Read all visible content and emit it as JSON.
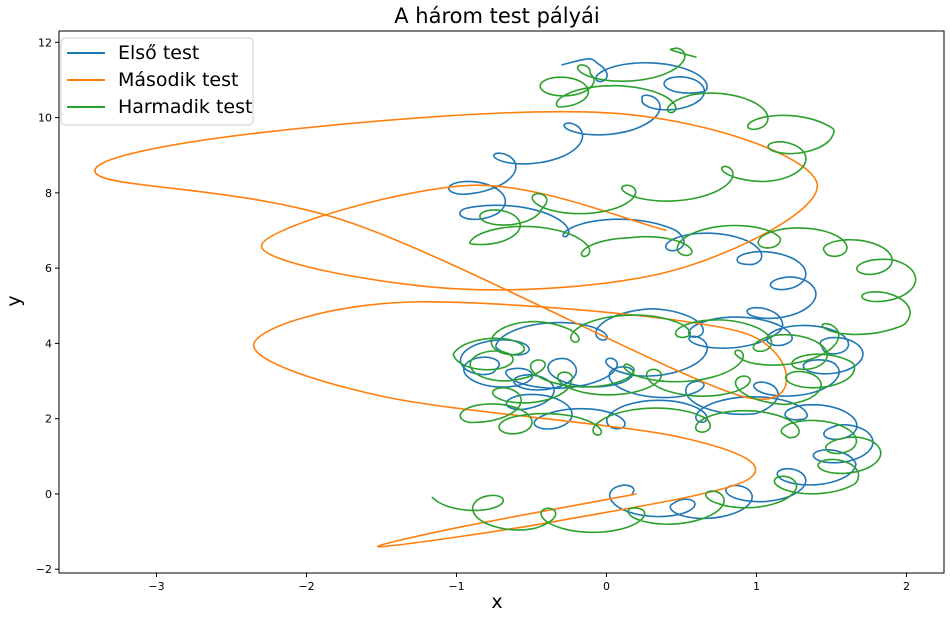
{
  "chart_data": {
    "type": "line",
    "title": "A három test pályái",
    "xlabel": "x",
    "ylabel": "y",
    "xlim": [
      -3.65,
      2.25
    ],
    "ylim": [
      -2.1,
      12.3
    ],
    "xticks": [
      -3,
      -2,
      -1,
      0,
      1,
      2
    ],
    "xtick_labels": [
      "−3",
      "−2",
      "−1",
      "0",
      "1",
      "2"
    ],
    "yticks": [
      -2,
      0,
      2,
      4,
      6,
      8,
      10,
      12
    ],
    "ytick_labels": [
      "−2",
      "0",
      "2",
      "4",
      "6",
      "8",
      "10",
      "12"
    ],
    "grid": false,
    "legend_position": "top-left",
    "series": [
      {
        "name": "Első test",
        "color": "#1f77b4",
        "style": "looping spiral; center drifts from (0,0) out to x≈1.6 and up to y≈12",
        "x": [
          0.0,
          0.55,
          1.05,
          1.5,
          1.65,
          1.3,
          0.4,
          -0.3,
          -0.55,
          -0.35,
          0.2,
          0.9,
          1.45,
          1.6,
          1.1,
          0.3,
          -0.6,
          -0.9,
          -0.6,
          0.3,
          1.0,
          1.3,
          1.0,
          0.3,
          -0.8,
          -0.9,
          -0.3,
          0.4,
          0.6,
          -0.3
        ],
        "y": [
          0.0,
          -0.5,
          0.1,
          0.7,
          1.6,
          2.3,
          2.2,
          1.9,
          2.6,
          3.3,
          3.0,
          2.4,
          3.2,
          4.0,
          4.3,
          4.6,
          4.1,
          3.4,
          3.0,
          3.4,
          4.4,
          5.5,
          6.4,
          6.9,
          7.4,
          8.3,
          9.4,
          10.4,
          11.0,
          11.4
        ]
      },
      {
        "name": "Második test",
        "color": "#ff7f0e",
        "style": "large elongated loops",
        "x": [
          0.4,
          -0.9,
          -2.3,
          -1.0,
          0.5,
          1.4,
          0.1,
          -2.3,
          -3.4,
          -1.7,
          0.9,
          0.9,
          -1.3,
          -2.35,
          -1.5,
          0.5,
          0.95,
          -0.3,
          -1.5,
          -1.0,
          0.2
        ],
        "y": [
          7.0,
          8.2,
          6.6,
          5.45,
          6.0,
          8.3,
          10.1,
          9.6,
          8.5,
          7.2,
          2.6,
          4.3,
          5.1,
          4.0,
          2.6,
          1.5,
          0.4,
          -0.7,
          -1.4,
          -0.9,
          0.0
        ]
      },
      {
        "name": "Harmadik test",
        "color": "#2ca02c",
        "style": "looping spiral; center drifts from (-1,0) out to x≈1.9 and up to y≈11.6",
        "x": [
          -1.0,
          -0.6,
          0.2,
          0.9,
          1.5,
          1.7,
          1.3,
          0.5,
          -0.5,
          -0.85,
          -0.4,
          0.4,
          1.2,
          1.5,
          1.2,
          0.5,
          -0.5,
          -0.85,
          -0.7,
          0.1,
          1.1,
          1.85,
          1.9,
          1.6,
          1.0,
          0.2,
          -0.8,
          -0.6,
          0.2,
          1.1,
          1.35,
          0.7,
          -0.3,
          -0.25,
          0.6
        ],
        "y": [
          0.0,
          -0.7,
          -0.7,
          -0.1,
          0.4,
          1.2,
          1.8,
          2.0,
          1.8,
          2.2,
          2.9,
          3.0,
          2.7,
          3.3,
          4.0,
          4.5,
          4.3,
          3.7,
          3.3,
          3.1,
          3.6,
          4.7,
          5.9,
          6.6,
          6.9,
          6.5,
          6.9,
          7.6,
          7.9,
          8.6,
          9.6,
          10.4,
          10.6,
          11.0,
          11.6
        ]
      }
    ]
  }
}
